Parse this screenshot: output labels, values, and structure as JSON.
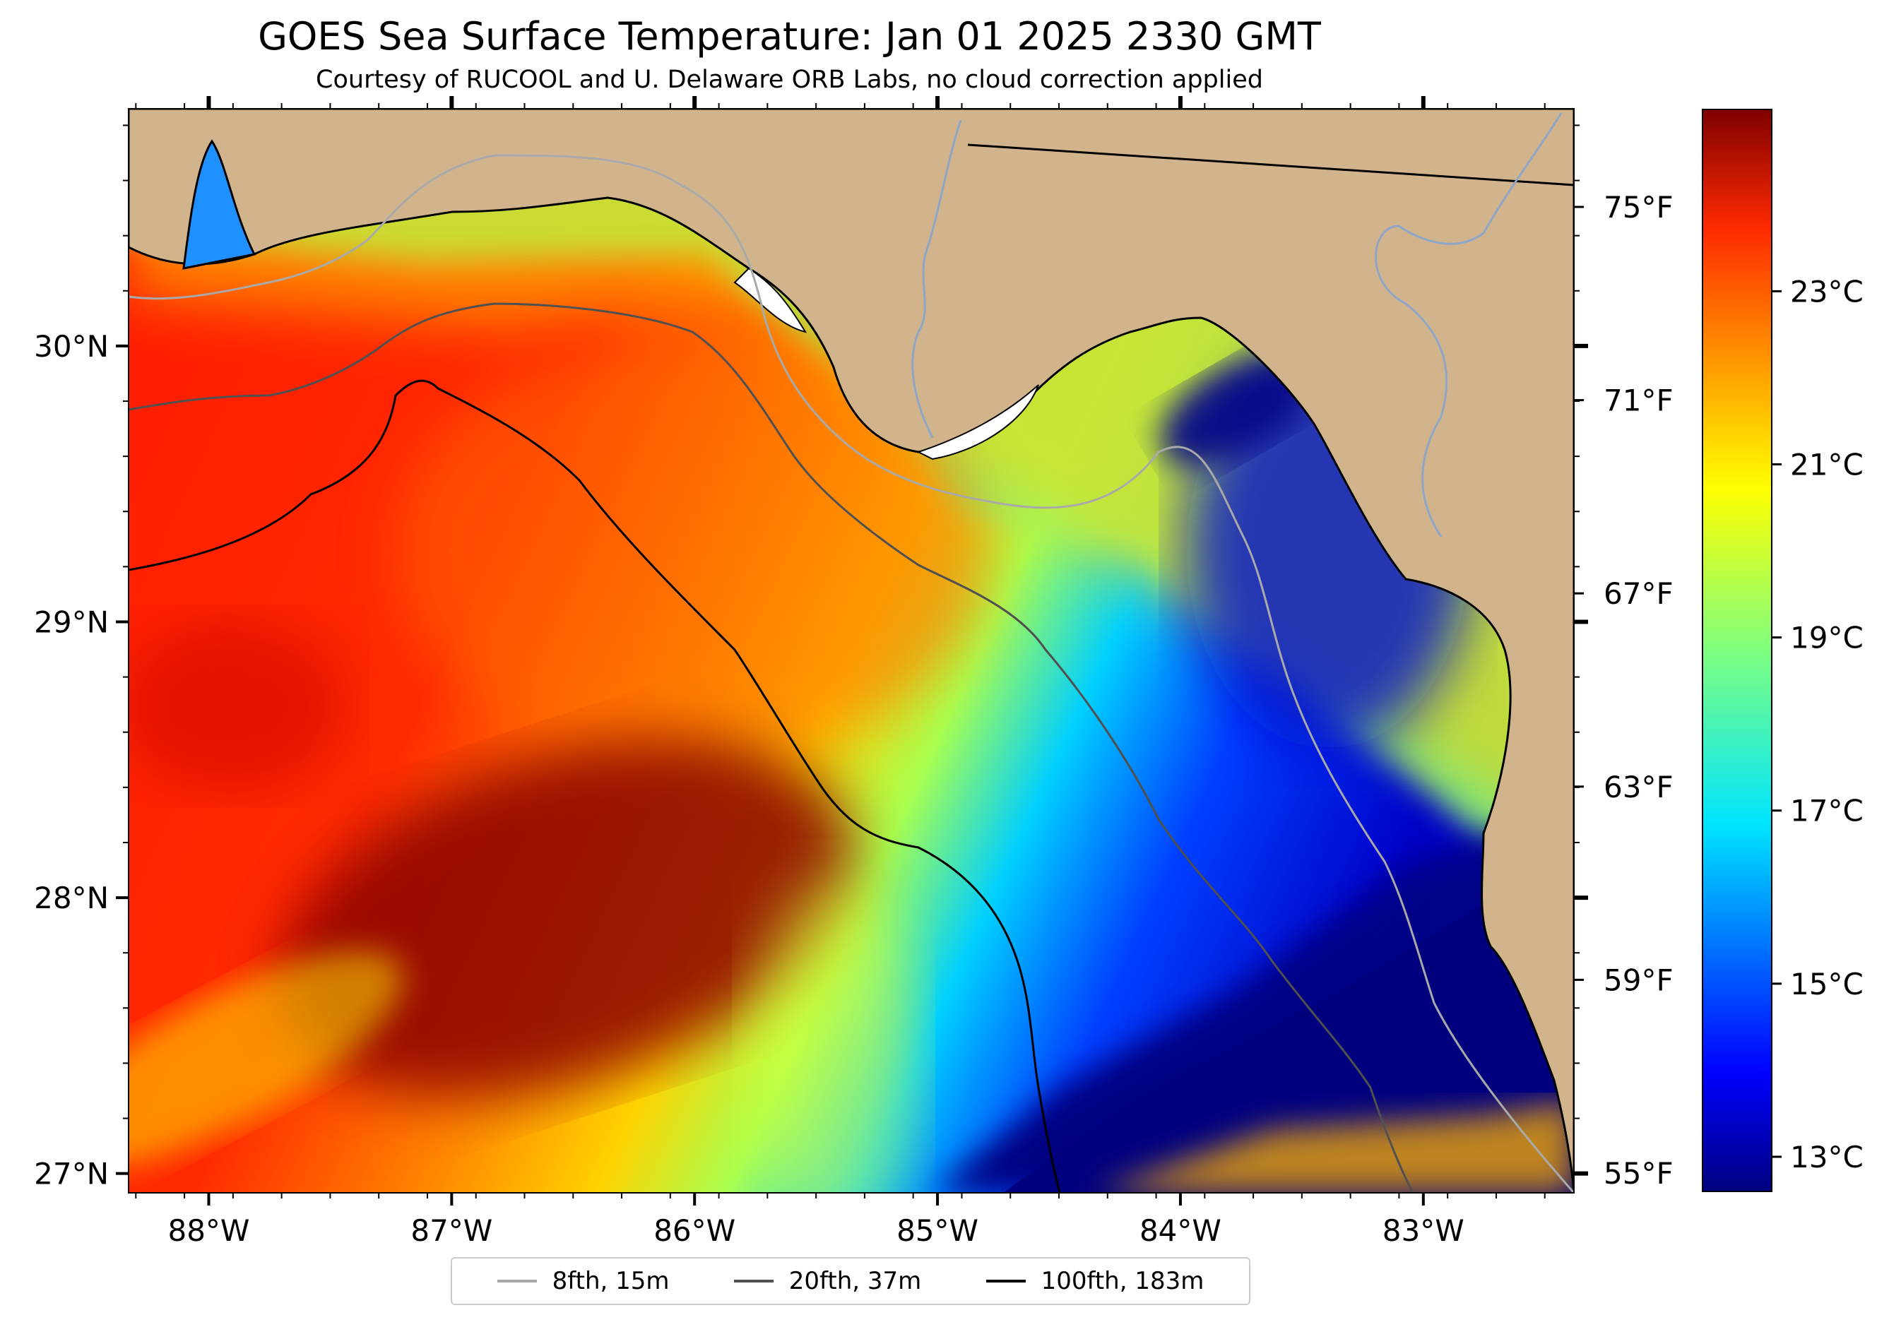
{
  "header": {
    "title": "GOES Sea Surface Temperature: Jan 01 2025 2330 GMT",
    "subtitle": "Courtesy of RUCOOL and U. Delaware ORB Labs, no cloud correction applied"
  },
  "map": {
    "lon_range": [
      -88.33,
      -82.38
    ],
    "lat_range": [
      26.93,
      30.86
    ],
    "lon_ticks": [
      {
        "value": -88,
        "label": "88°W"
      },
      {
        "value": -87,
        "label": "87°W"
      },
      {
        "value": -86,
        "label": "86°W"
      },
      {
        "value": -85,
        "label": "85°W"
      },
      {
        "value": -84,
        "label": "84°W"
      },
      {
        "value": -83,
        "label": "83°W"
      }
    ],
    "lat_ticks": [
      {
        "value": 30,
        "label": "30°N"
      },
      {
        "value": 29,
        "label": "29°N"
      },
      {
        "value": 28,
        "label": "28°N"
      },
      {
        "value": 27,
        "label": "27°N"
      }
    ],
    "land_color": "#d2b48c"
  },
  "fahrenheit_axis": [
    {
      "value": 75,
      "label": "75°F"
    },
    {
      "value": 71,
      "label": "71°F"
    },
    {
      "value": 67,
      "label": "67°F"
    },
    {
      "value": 63,
      "label": "63°F"
    },
    {
      "value": 59,
      "label": "59°F"
    },
    {
      "value": 55,
      "label": "55°F"
    }
  ],
  "colorbar": {
    "min_c": 12.6,
    "max_c": 25.1,
    "ticks": [
      {
        "value": 23,
        "label": "23°C"
      },
      {
        "value": 21,
        "label": "21°C"
      },
      {
        "value": 19,
        "label": "19°C"
      },
      {
        "value": 17,
        "label": "17°C"
      },
      {
        "value": 15,
        "label": "15°C"
      },
      {
        "value": 13,
        "label": "13°C"
      }
    ],
    "colormap": "jet"
  },
  "legend": {
    "items": [
      {
        "label": "8fth, 15m",
        "color": "#a9a9a9"
      },
      {
        "label": "20fth, 37m",
        "color": "#505050"
      },
      {
        "label": "100fth, 183m",
        "color": "#000000"
      }
    ]
  }
}
